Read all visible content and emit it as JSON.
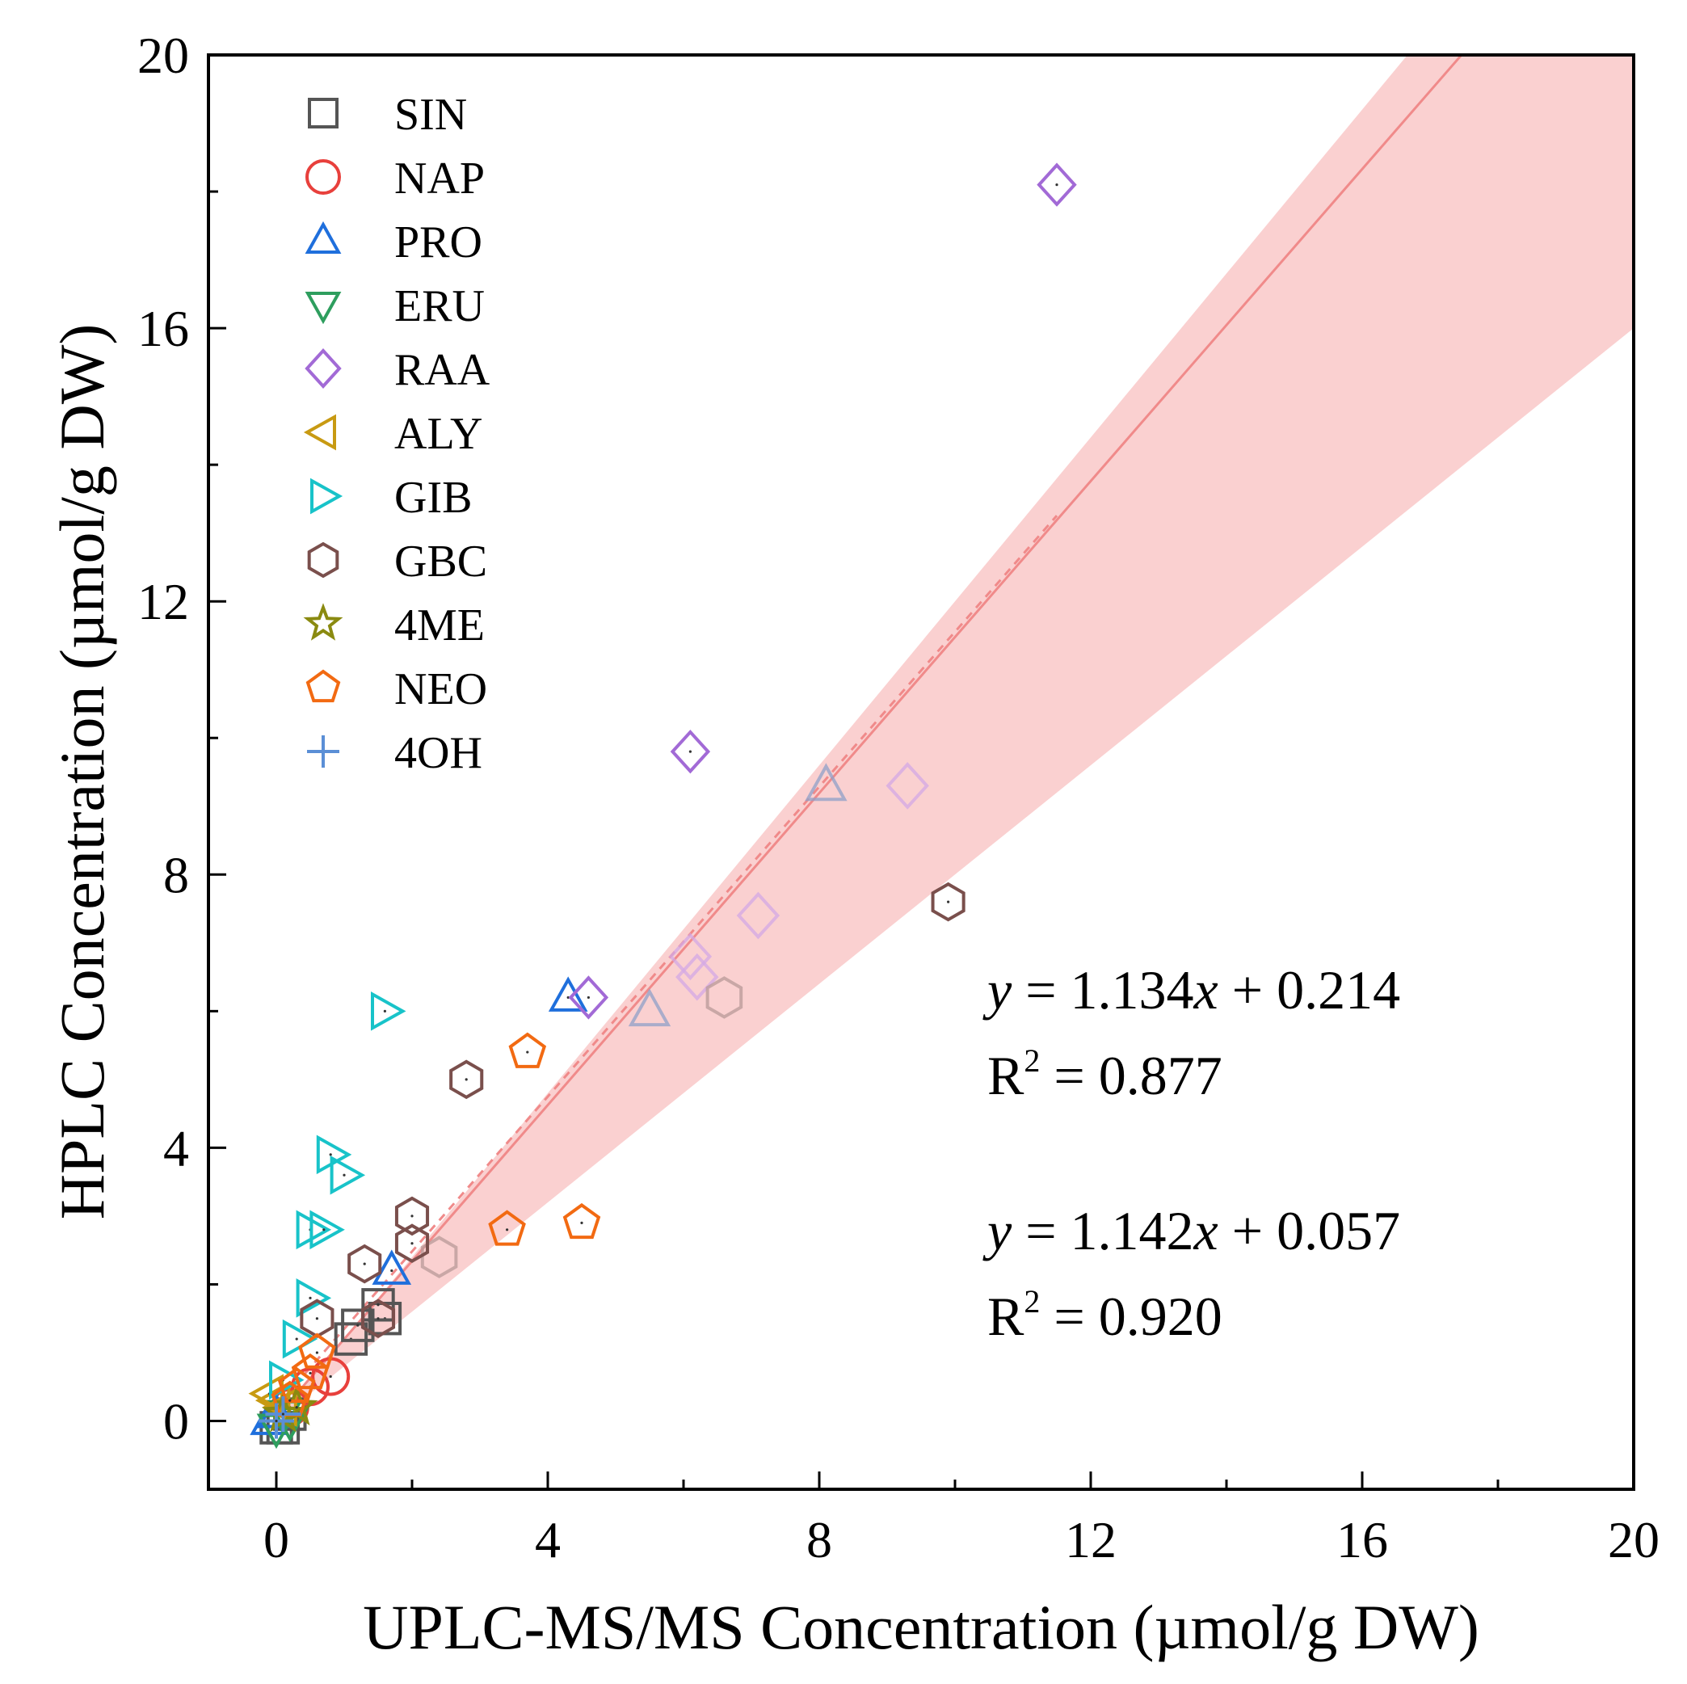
{
  "chart_data": {
    "type": "scatter",
    "title": "",
    "xlabel": "UPLC-MS/MS Concentration (µmol/g DW)",
    "ylabel": "HPLC Concentration (µmol/g DW)",
    "xlim": [
      -1,
      20
    ],
    "ylim": [
      -1,
      20
    ],
    "x_ticks": [
      "0",
      "4",
      "8",
      "12",
      "16",
      "20"
    ],
    "y_ticks": [
      "0",
      "4",
      "8",
      "12",
      "16",
      "20"
    ],
    "legend_position": "top-left",
    "colors": {
      "SIN": "#555555",
      "NAP": "#e8403c",
      "PRO": "#1f6fdc",
      "ERU": "#2e9e5e",
      "RAA": "#a26ad6",
      "ALY": "#c89a12",
      "GIB": "#18c3c9",
      "GBC": "#7a4f4c",
      "4ME": "#8a8a10",
      "NEO": "#f26a12",
      "4OH": "#5b8fd6",
      "fit": "#f08a8a",
      "band": "#f7b7b7"
    },
    "series": [
      {
        "name": "SIN",
        "marker": "square",
        "points": [
          [
            0,
            -0.1
          ],
          [
            0.1,
            -0.1
          ],
          [
            0.2,
            0.1
          ],
          [
            1.1,
            1.2
          ],
          [
            1.6,
            1.5
          ],
          [
            1.5,
            1.7
          ],
          [
            1.2,
            1.4
          ]
        ]
      },
      {
        "name": "NAP",
        "marker": "circle",
        "points": [
          [
            0.8,
            0.65
          ],
          [
            0.5,
            0.5
          ],
          [
            0.2,
            0.2
          ]
        ]
      },
      {
        "name": "PRO",
        "marker": "triangle-up",
        "points": [
          [
            4.3,
            6.2
          ],
          [
            1.7,
            2.2
          ],
          [
            0,
            0.1
          ],
          [
            -0.1,
            0
          ]
        ]
      },
      {
        "name": "ERU",
        "marker": "triangle-down",
        "points": [
          [
            0,
            -0.1
          ],
          [
            0.2,
            0
          ],
          [
            0.1,
            0.1
          ]
        ]
      },
      {
        "name": "RAA",
        "marker": "diamond",
        "points": [
          [
            11.5,
            18.1
          ],
          [
            6.1,
            9.8
          ],
          [
            4.6,
            6.2
          ]
        ]
      },
      {
        "name": "ALY",
        "marker": "triangle-left",
        "points": [
          [
            0,
            0.3
          ],
          [
            0.1,
            0.2
          ],
          [
            -0.1,
            0.4
          ]
        ]
      },
      {
        "name": "GIB",
        "marker": "triangle-right",
        "points": [
          [
            1.6,
            6.0
          ],
          [
            0.8,
            3.9
          ],
          [
            1.0,
            3.6
          ],
          [
            0.5,
            2.8
          ],
          [
            0.7,
            2.8
          ],
          [
            0.5,
            1.8
          ],
          [
            0.3,
            1.2
          ],
          [
            0.1,
            0.6
          ]
        ]
      },
      {
        "name": "GBC",
        "marker": "hexagon",
        "points": [
          [
            9.9,
            7.6
          ],
          [
            2.8,
            5.0
          ],
          [
            2.0,
            3.0
          ],
          [
            1.3,
            2.3
          ],
          [
            2.0,
            2.6
          ],
          [
            0.6,
            1.5
          ],
          [
            1.5,
            1.5
          ]
        ]
      },
      {
        "name": "4ME",
        "marker": "star",
        "points": [
          [
            0.1,
            0.1
          ],
          [
            0.3,
            0.2
          ]
        ]
      },
      {
        "name": "NEO",
        "marker": "pentagon",
        "points": [
          [
            3.7,
            5.4
          ],
          [
            4.5,
            2.9
          ],
          [
            3.4,
            2.8
          ],
          [
            0.6,
            1.0
          ],
          [
            0.3,
            0.5
          ],
          [
            0.2,
            0.3
          ],
          [
            0.5,
            0.7
          ]
        ]
      },
      {
        "name": "4OH",
        "marker": "plus",
        "points": [
          [
            0,
            0
          ],
          [
            0.1,
            0.1
          ]
        ]
      }
    ],
    "faded_points": [
      {
        "marker": "triangle-up",
        "points": [
          [
            8.1,
            9.3
          ],
          [
            5.5,
            6.0
          ]
        ]
      },
      {
        "marker": "diamond",
        "points": [
          [
            9.3,
            9.3
          ],
          [
            7.1,
            7.4
          ],
          [
            6.1,
            6.8
          ],
          [
            6.2,
            6.5
          ]
        ]
      },
      {
        "marker": "hexagon",
        "points": [
          [
            6.6,
            6.2
          ],
          [
            2.4,
            2.4
          ]
        ]
      }
    ],
    "fits": [
      {
        "label": "y = 1.134x + 0.214",
        "equation": {
          "y": "y",
          "rest": " = 1.134",
          "x": "x",
          "tail": " + 0.214"
        },
        "r2": {
          "base": "R",
          "sup": "2",
          "value": " = 0.877"
        },
        "slope": 1.134,
        "intercept": 0.214,
        "style": "dashed",
        "x_range": [
          0,
          11.5
        ]
      },
      {
        "label": "y = 1.142x + 0.057",
        "equation": {
          "y": "y",
          "rest": " = 1.142",
          "x": "x",
          "tail": " + 0.057"
        },
        "r2": {
          "base": "R",
          "sup": "2",
          "value": " = 0.920"
        },
        "slope": 1.142,
        "intercept": 0.057,
        "style": "solid",
        "x_range": [
          0,
          20
        ]
      }
    ],
    "confidence_band": {
      "upper_slope": 1.2,
      "lower_slope": 0.8
    }
  }
}
